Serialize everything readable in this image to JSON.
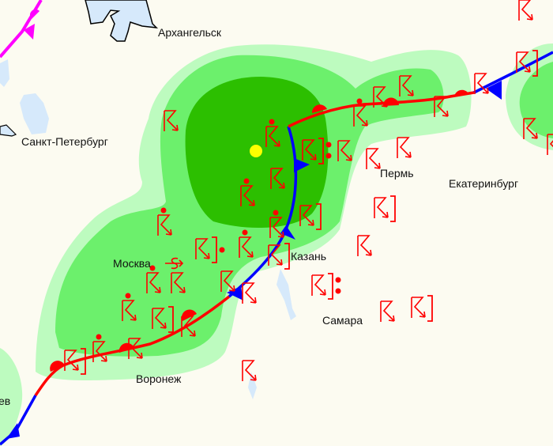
{
  "map": {
    "cities": [
      {
        "name": "Архангельск"
      },
      {
        "name": "Санкт-Петербург"
      },
      {
        "name": "Москва"
      },
      {
        "name": "Казань"
      },
      {
        "name": "Пермь"
      },
      {
        "name": "Екатеринбург"
      },
      {
        "name": "Самара"
      },
      {
        "name": "Воронеж"
      },
      {
        "name": "ев"
      }
    ],
    "legend_colors": {
      "background": "#fcfbf1",
      "water": "#d6e9fb",
      "precip_light": "#bdfbbf",
      "precip_moderate": "#6cf06c",
      "precip_heavy": "#2cbf00",
      "warm_front": "#ff0000",
      "cold_front": "#0000ff",
      "occluded_front": "#ff00ff",
      "thunderstorm_symbol": "#ff0000",
      "max_marker": "#ffff00"
    },
    "symbols": [
      "thunderstorm-icon",
      "thunderstorm-with-rain-icon",
      "thunderstorm-past-hour-icon",
      "sandstorm-icon"
    ]
  }
}
